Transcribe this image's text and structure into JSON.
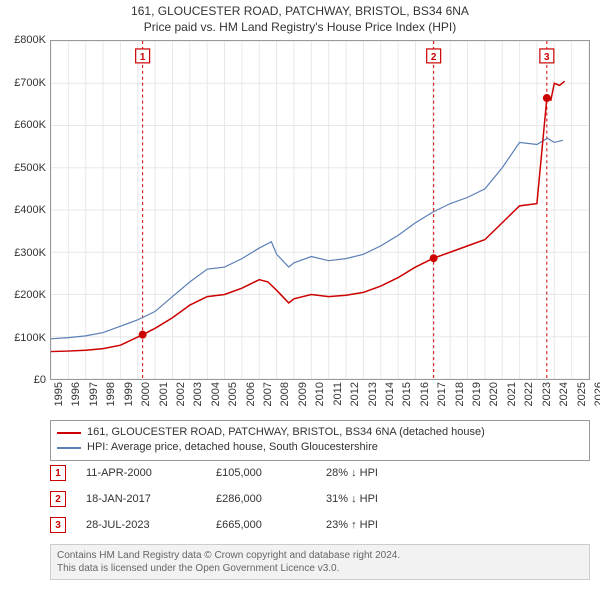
{
  "title_line1": "161, GLOUCESTER ROAD, PATCHWAY, BRISTOL, BS34 6NA",
  "title_line2": "Price paid vs. HM Land Registry's House Price Index (HPI)",
  "colors": {
    "series_property": "#cc0000",
    "series_hpi": "#5b7fb5",
    "marker_border": "#cc0000",
    "axis": "#999999",
    "grid": "#e8e8e8",
    "dashed_marker": "#cc0000",
    "bg": "#ffffff",
    "attribution_bg": "#f2f2f2",
    "attribution_border": "#cccccc",
    "attribution_text": "#666666"
  },
  "y_axis": {
    "min": 0,
    "max": 800000,
    "ticks": [
      0,
      100000,
      200000,
      300000,
      400000,
      500000,
      600000,
      700000,
      800000
    ],
    "labels": [
      "£0",
      "£100K",
      "£200K",
      "£300K",
      "£400K",
      "£500K",
      "£600K",
      "£700K",
      "£800K"
    ]
  },
  "x_axis": {
    "min": 1995,
    "max": 2026,
    "ticks": [
      1995,
      1996,
      1997,
      1998,
      1999,
      2000,
      2001,
      2002,
      2003,
      2004,
      2005,
      2006,
      2007,
      2008,
      2009,
      2010,
      2011,
      2012,
      2013,
      2014,
      2015,
      2016,
      2017,
      2018,
      2019,
      2020,
      2021,
      2022,
      2023,
      2024,
      2025,
      2026
    ]
  },
  "series": {
    "property": {
      "label": "161, GLOUCESTER ROAD, PATCHWAY, BRISTOL, BS34 6NA (detached house)",
      "line_width": 1.5,
      "data": [
        [
          1995,
          65000
        ],
        [
          1996,
          66000
        ],
        [
          1997,
          68000
        ],
        [
          1998,
          72000
        ],
        [
          1999,
          80000
        ],
        [
          2000.28,
          105000
        ],
        [
          2001,
          120000
        ],
        [
          2002,
          145000
        ],
        [
          2003,
          175000
        ],
        [
          2004,
          195000
        ],
        [
          2005,
          200000
        ],
        [
          2006,
          215000
        ],
        [
          2007,
          235000
        ],
        [
          2007.5,
          230000
        ],
        [
          2008,
          210000
        ],
        [
          2008.7,
          180000
        ],
        [
          2009,
          190000
        ],
        [
          2010,
          200000
        ],
        [
          2011,
          195000
        ],
        [
          2012,
          198000
        ],
        [
          2013,
          205000
        ],
        [
          2014,
          220000
        ],
        [
          2015,
          240000
        ],
        [
          2016,
          265000
        ],
        [
          2017.05,
          286000
        ],
        [
          2018,
          300000
        ],
        [
          2019,
          315000
        ],
        [
          2020,
          330000
        ],
        [
          2021,
          370000
        ],
        [
          2022,
          410000
        ],
        [
          2023,
          415000
        ],
        [
          2023.57,
          665000
        ],
        [
          2023.8,
          660000
        ],
        [
          2024,
          700000
        ],
        [
          2024.3,
          695000
        ],
        [
          2024.6,
          705000
        ]
      ]
    },
    "hpi": {
      "label": "HPI: Average price, detached house, South Gloucestershire",
      "line_width": 1.2,
      "data": [
        [
          1995,
          95000
        ],
        [
          1996,
          98000
        ],
        [
          1997,
          102000
        ],
        [
          1998,
          110000
        ],
        [
          1999,
          125000
        ],
        [
          2000,
          140000
        ],
        [
          2001,
          160000
        ],
        [
          2002,
          195000
        ],
        [
          2003,
          230000
        ],
        [
          2004,
          260000
        ],
        [
          2005,
          265000
        ],
        [
          2006,
          285000
        ],
        [
          2007,
          310000
        ],
        [
          2007.7,
          325000
        ],
        [
          2008,
          295000
        ],
        [
          2008.7,
          265000
        ],
        [
          2009,
          275000
        ],
        [
          2010,
          290000
        ],
        [
          2011,
          280000
        ],
        [
          2012,
          285000
        ],
        [
          2013,
          295000
        ],
        [
          2014,
          315000
        ],
        [
          2015,
          340000
        ],
        [
          2016,
          370000
        ],
        [
          2017,
          395000
        ],
        [
          2018,
          415000
        ],
        [
          2019,
          430000
        ],
        [
          2020,
          450000
        ],
        [
          2021,
          500000
        ],
        [
          2022,
          560000
        ],
        [
          2023,
          555000
        ],
        [
          2023.6,
          570000
        ],
        [
          2024,
          560000
        ],
        [
          2024.5,
          565000
        ]
      ]
    }
  },
  "event_markers": [
    {
      "n": "1",
      "year": 2000.28,
      "price": 105000
    },
    {
      "n": "2",
      "year": 2017.05,
      "price": 286000
    },
    {
      "n": "3",
      "year": 2023.57,
      "price": 665000
    }
  ],
  "events": [
    {
      "n": "1",
      "date": "11-APR-2000",
      "price": "£105,000",
      "delta": "28% ↓ HPI"
    },
    {
      "n": "2",
      "date": "18-JAN-2017",
      "price": "£286,000",
      "delta": "31% ↓ HPI"
    },
    {
      "n": "3",
      "date": "28-JUL-2023",
      "price": "£665,000",
      "delta": "23% ↑ HPI"
    }
  ],
  "legend": [
    {
      "color": "#cc0000",
      "label": "161, GLOUCESTER ROAD, PATCHWAY, BRISTOL, BS34 6NA (detached house)"
    },
    {
      "color": "#5b7fb5",
      "label": "HPI: Average price, detached house, South Gloucestershire"
    }
  ],
  "attribution_line1": "Contains HM Land Registry data © Crown copyright and database right 2024.",
  "attribution_line2": "This data is licensed under the Open Government Licence v3.0."
}
